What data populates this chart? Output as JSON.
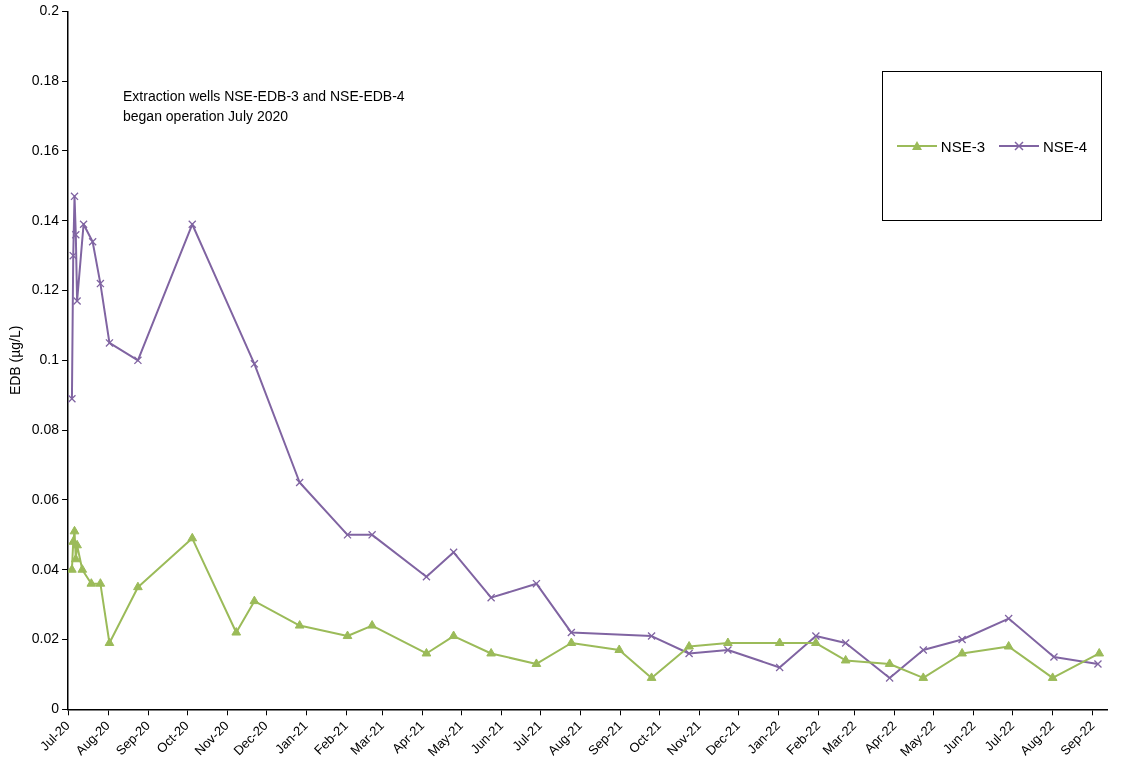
{
  "chart_data": {
    "type": "line",
    "ylabel": "EDB (µg/L)",
    "annotations": [
      "Extraction wells NSE-EDB-3 and NSE-EDB-4\nbegan operation July 2020"
    ],
    "xlim": [
      "2020-07-01",
      "2022-09-12"
    ],
    "xticks": [
      {
        "value": "2020-07-01",
        "label": "Jul-20"
      },
      {
        "value": "2020-08-01",
        "label": "Aug-20"
      },
      {
        "value": "2020-09-01",
        "label": "Sep-20"
      },
      {
        "value": "2020-10-01",
        "label": "Oct-20"
      },
      {
        "value": "2020-11-01",
        "label": "Nov-20"
      },
      {
        "value": "2020-12-01",
        "label": "Dec-20"
      },
      {
        "value": "2021-01-01",
        "label": "Jan-21"
      },
      {
        "value": "2021-02-01",
        "label": "Feb-21"
      },
      {
        "value": "2021-03-01",
        "label": "Mar-21"
      },
      {
        "value": "2021-04-01",
        "label": "Apr-21"
      },
      {
        "value": "2021-05-01",
        "label": "May-21"
      },
      {
        "value": "2021-06-01",
        "label": "Jun-21"
      },
      {
        "value": "2021-07-01",
        "label": "Jul-21"
      },
      {
        "value": "2021-08-01",
        "label": "Aug-21"
      },
      {
        "value": "2021-09-01",
        "label": "Sep-21"
      },
      {
        "value": "2021-10-01",
        "label": "Oct-21"
      },
      {
        "value": "2021-11-01",
        "label": "Nov-21"
      },
      {
        "value": "2021-12-01",
        "label": "Dec-21"
      },
      {
        "value": "2022-01-01",
        "label": "Jan-22"
      },
      {
        "value": "2022-02-01",
        "label": "Feb-22"
      },
      {
        "value": "2022-03-01",
        "label": "Mar-22"
      },
      {
        "value": "2022-04-01",
        "label": "Apr-22"
      },
      {
        "value": "2022-05-01",
        "label": "May-22"
      },
      {
        "value": "2022-06-01",
        "label": "Jun-22"
      },
      {
        "value": "2022-07-01",
        "label": "Jul-22"
      },
      {
        "value": "2022-08-01",
        "label": "Aug-22"
      },
      {
        "value": "2022-09-01",
        "label": "Sep-22"
      }
    ],
    "ylim": [
      0,
      0.2
    ],
    "yticks": [
      0,
      0.02,
      0.04,
      0.06,
      0.08,
      0.1,
      0.12,
      0.14,
      0.16,
      0.18,
      0.2
    ],
    "legend": "top right",
    "line_style": "solid",
    "series": [
      {
        "name": "NSE-3",
        "color": "#9bbb59",
        "marker": "triangle",
        "x": [
          "2020-07-04",
          "2020-07-05",
          "2020-07-06",
          "2020-07-07",
          "2020-07-08",
          "2020-07-12",
          "2020-07-19",
          "2020-07-26",
          "2020-08-02",
          "2020-08-24",
          "2020-10-05",
          "2020-11-08",
          "2020-11-22",
          "2020-12-27",
          "2021-02-02",
          "2021-02-21",
          "2021-04-04",
          "2021-04-25",
          "2021-05-24",
          "2021-06-28",
          "2021-07-25",
          "2021-08-31",
          "2021-09-25",
          "2021-10-24",
          "2021-11-23",
          "2022-01-02",
          "2022-01-30",
          "2022-02-22",
          "2022-03-28",
          "2022-04-23",
          "2022-05-23",
          "2022-06-28",
          "2022-08-01",
          "2022-09-06"
        ],
        "values": [
          0.04,
          0.048,
          0.051,
          0.043,
          0.047,
          0.04,
          0.036,
          0.036,
          0.019,
          0.035,
          0.049,
          0.022,
          0.031,
          0.024,
          0.021,
          0.024,
          0.016,
          0.021,
          0.016,
          0.013,
          0.019,
          0.017,
          0.009,
          0.018,
          0.019,
          0.019,
          0.019,
          0.014,
          0.013,
          0.009,
          0.016,
          0.018,
          0.009,
          0.016
        ]
      },
      {
        "name": "NSE-4",
        "color": "#8064a2",
        "marker": "cross",
        "x": [
          "2020-07-04",
          "2020-07-05",
          "2020-07-06",
          "2020-07-07",
          "2020-07-08",
          "2020-07-13",
          "2020-07-20",
          "2020-07-26",
          "2020-08-02",
          "2020-08-24",
          "2020-10-05",
          "2020-11-22",
          "2020-12-27",
          "2021-02-02",
          "2021-02-21",
          "2021-04-04",
          "2021-04-25",
          "2021-05-24",
          "2021-06-28",
          "2021-07-25",
          "2021-09-25",
          "2021-10-24",
          "2021-11-23",
          "2022-01-02",
          "2022-01-30",
          "2022-02-22",
          "2022-03-28",
          "2022-04-23",
          "2022-05-23",
          "2022-06-28",
          "2022-08-02",
          "2022-09-05"
        ],
        "values": [
          0.089,
          0.13,
          0.147,
          0.136,
          0.117,
          0.139,
          0.134,
          0.122,
          0.105,
          0.1,
          0.139,
          0.099,
          0.065,
          0.05,
          0.05,
          0.038,
          0.045,
          0.032,
          0.036,
          0.022,
          0.021,
          0.016,
          0.017,
          0.012,
          0.021,
          0.019,
          0.009,
          0.017,
          0.02,
          0.026,
          0.015,
          0.013
        ]
      }
    ]
  }
}
